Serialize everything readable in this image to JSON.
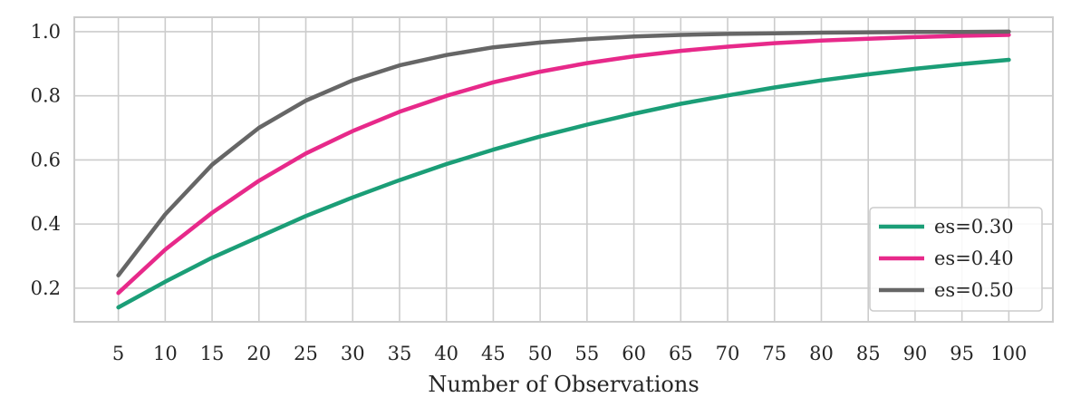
{
  "chart_data": {
    "type": "line",
    "title": "",
    "xlabel": "Number of Observations",
    "ylabel": "",
    "xlim": [
      0.3,
      104.7
    ],
    "ylim": [
      0.095,
      1.045
    ],
    "x_ticks": [
      5,
      10,
      15,
      20,
      25,
      30,
      35,
      40,
      45,
      50,
      55,
      60,
      65,
      70,
      75,
      80,
      85,
      90,
      95,
      100
    ],
    "y_ticks": [
      0.2,
      0.4,
      0.6,
      0.8,
      1.0
    ],
    "grid": true,
    "legend_position": "lower-right",
    "x": [
      5,
      10,
      15,
      20,
      25,
      30,
      35,
      40,
      45,
      50,
      55,
      60,
      65,
      70,
      75,
      80,
      85,
      90,
      95,
      100
    ],
    "series": [
      {
        "name": "es=0.30",
        "color": "#1b9e77",
        "values": [
          0.14,
          0.22,
          0.295,
          0.36,
          0.425,
          0.483,
          0.537,
          0.587,
          0.632,
          0.673,
          0.71,
          0.744,
          0.775,
          0.801,
          0.826,
          0.848,
          0.867,
          0.884,
          0.899,
          0.912
        ]
      },
      {
        "name": "es=0.40",
        "color": "#e7298a",
        "values": [
          0.185,
          0.32,
          0.435,
          0.535,
          0.62,
          0.69,
          0.75,
          0.8,
          0.842,
          0.875,
          0.902,
          0.923,
          0.94,
          0.953,
          0.964,
          0.972,
          0.978,
          0.983,
          0.987,
          0.99
        ]
      },
      {
        "name": "es=0.50",
        "color": "#666666",
        "values": [
          0.24,
          0.43,
          0.585,
          0.7,
          0.785,
          0.848,
          0.895,
          0.927,
          0.951,
          0.966,
          0.977,
          0.985,
          0.99,
          0.993,
          0.995,
          0.997,
          0.998,
          0.999,
          0.999,
          1.0
        ]
      }
    ]
  }
}
